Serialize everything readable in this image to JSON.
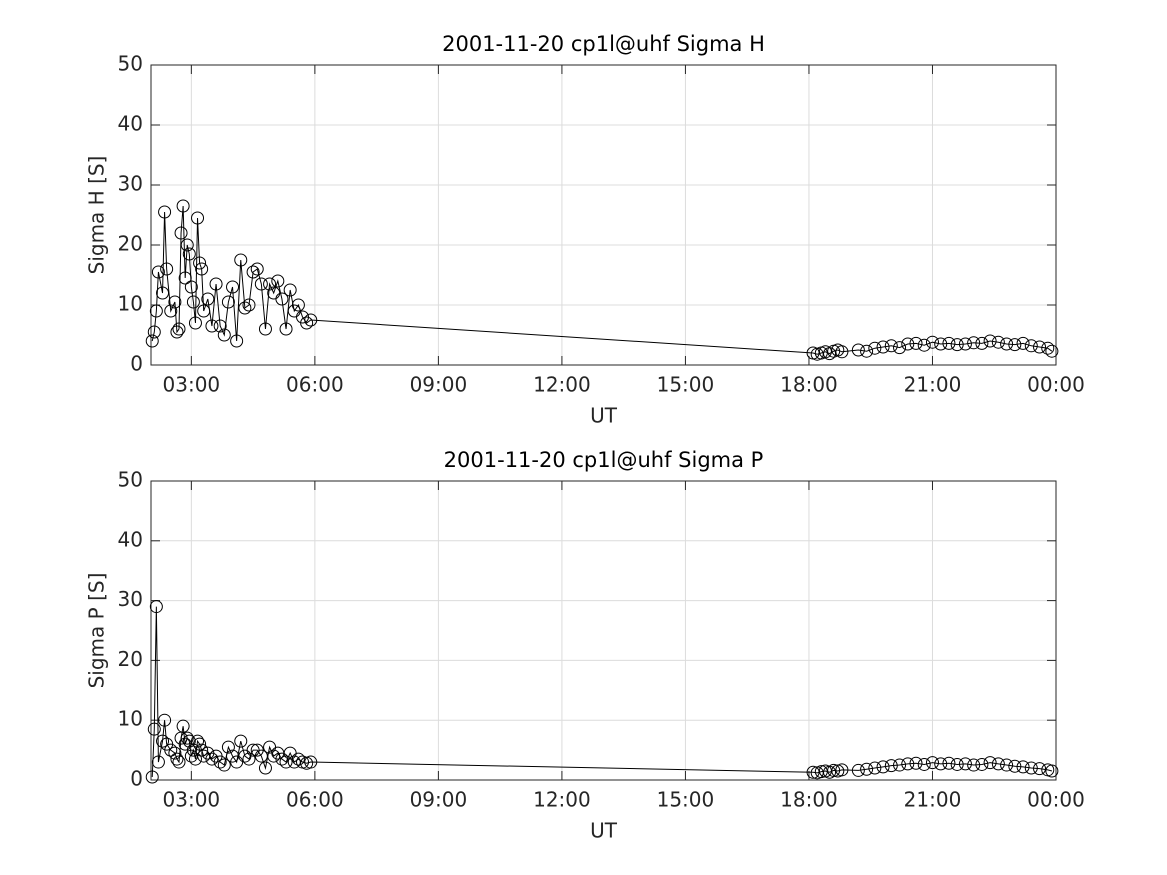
{
  "chart_data": [
    {
      "type": "line",
      "title": "2001-11-20  cp1l@uhf Sigma H",
      "xlabel": "UT",
      "ylabel": "Sigma H [S]",
      "color": "#000000",
      "grid": true,
      "xlim": [
        2.02,
        24
      ],
      "ylim": [
        0,
        50
      ],
      "xticks": [
        {
          "value": 3,
          "label": "03:00"
        },
        {
          "value": 6,
          "label": "06:00"
        },
        {
          "value": 9,
          "label": "09:00"
        },
        {
          "value": 12,
          "label": "12:00"
        },
        {
          "value": 15,
          "label": "15:00"
        },
        {
          "value": 18,
          "label": "18:00"
        },
        {
          "value": 21,
          "label": "21:00"
        },
        {
          "value": 24,
          "label": "00:00"
        }
      ],
      "yticks": [
        0,
        10,
        20,
        30,
        40,
        50
      ],
      "x": [
        2.05,
        2.1,
        2.15,
        2.2,
        2.3,
        2.35,
        2.4,
        2.5,
        2.6,
        2.65,
        2.7,
        2.75,
        2.8,
        2.85,
        2.9,
        2.95,
        3.0,
        3.05,
        3.1,
        3.15,
        3.2,
        3.25,
        3.3,
        3.4,
        3.5,
        3.6,
        3.7,
        3.8,
        3.9,
        4.0,
        4.1,
        4.2,
        4.3,
        4.4,
        4.5,
        4.6,
        4.7,
        4.8,
        4.9,
        5.0,
        5.1,
        5.2,
        5.3,
        5.4,
        5.5,
        5.6,
        5.7,
        5.8,
        5.9,
        18.1,
        18.2,
        18.3,
        18.4,
        18.5,
        18.6,
        18.7,
        18.8,
        19.2,
        19.4,
        19.6,
        19.8,
        20.0,
        20.2,
        20.4,
        20.6,
        20.8,
        21.0,
        21.2,
        21.4,
        21.6,
        21.8,
        22.0,
        22.2,
        22.4,
        22.6,
        22.8,
        23.0,
        23.2,
        23.4,
        23.6,
        23.8,
        23.9
      ],
      "values": [
        4,
        5.5,
        9,
        15.5,
        12,
        25.5,
        16,
        9,
        10.5,
        5.5,
        6,
        22,
        26.5,
        14.5,
        20,
        18.5,
        13,
        10.5,
        7,
        24.5,
        17,
        16,
        9,
        11,
        6.5,
        13.5,
        6.5,
        5,
        10.5,
        13,
        4,
        17.5,
        9.5,
        10,
        15.5,
        16,
        13.5,
        6,
        13.5,
        12,
        14,
        11,
        6,
        12.5,
        9,
        10,
        8,
        7,
        7.5,
        2,
        1.8,
        2,
        2.2,
        1.9,
        2.3,
        2.5,
        2.2,
        2.5,
        2.3,
        2.8,
        3,
        3.2,
        2.9,
        3.5,
        3.6,
        3.3,
        3.8,
        3.5,
        3.6,
        3.4,
        3.5,
        3.7,
        3.6,
        4,
        3.8,
        3.5,
        3.4,
        3.6,
        3.2,
        3,
        2.8,
        2.3
      ]
    },
    {
      "type": "line",
      "title": "2001-11-20  cp1l@uhf Sigma P",
      "xlabel": "UT",
      "ylabel": "Sigma P [S]",
      "color": "#000000",
      "grid": true,
      "xlim": [
        2.02,
        24
      ],
      "ylim": [
        0,
        50
      ],
      "xticks": [
        {
          "value": 3,
          "label": "03:00"
        },
        {
          "value": 6,
          "label": "06:00"
        },
        {
          "value": 9,
          "label": "09:00"
        },
        {
          "value": 12,
          "label": "12:00"
        },
        {
          "value": 15,
          "label": "15:00"
        },
        {
          "value": 18,
          "label": "18:00"
        },
        {
          "value": 21,
          "label": "21:00"
        },
        {
          "value": 24,
          "label": "00:00"
        }
      ],
      "yticks": [
        0,
        10,
        20,
        30,
        40,
        50
      ],
      "x": [
        2.05,
        2.1,
        2.15,
        2.2,
        2.3,
        2.35,
        2.4,
        2.5,
        2.6,
        2.65,
        2.7,
        2.75,
        2.8,
        2.85,
        2.9,
        2.95,
        3.0,
        3.05,
        3.1,
        3.15,
        3.2,
        3.25,
        3.3,
        3.4,
        3.5,
        3.6,
        3.7,
        3.8,
        3.9,
        4.0,
        4.1,
        4.2,
        4.3,
        4.4,
        4.5,
        4.6,
        4.7,
        4.8,
        4.9,
        5.0,
        5.1,
        5.2,
        5.3,
        5.4,
        5.5,
        5.6,
        5.7,
        5.8,
        5.9,
        18.1,
        18.2,
        18.3,
        18.4,
        18.5,
        18.6,
        18.7,
        18.8,
        19.2,
        19.4,
        19.6,
        19.8,
        20.0,
        20.2,
        20.4,
        20.6,
        20.8,
        21.0,
        21.2,
        21.4,
        21.6,
        21.8,
        22.0,
        22.2,
        22.4,
        22.6,
        22.8,
        23.0,
        23.2,
        23.4,
        23.6,
        23.8,
        23.9
      ],
      "values": [
        0.5,
        8.5,
        29,
        3,
        6.5,
        10,
        6,
        5,
        4.5,
        3.5,
        3,
        7,
        9,
        6,
        7,
        6.5,
        4,
        5,
        3.5,
        6.5,
        6,
        5,
        4,
        4.5,
        3.5,
        4,
        3,
        2.5,
        5.5,
        4,
        3,
        6.5,
        4,
        3.5,
        5,
        5,
        4,
        2,
        5.5,
        4,
        4.5,
        3.5,
        3,
        4.5,
        3,
        3.5,
        3,
        2.8,
        3,
        1.3,
        1.2,
        1.4,
        1.5,
        1.3,
        1.6,
        1.5,
        1.7,
        1.6,
        1.8,
        2,
        2.2,
        2.4,
        2.5,
        2.7,
        2.8,
        2.6,
        2.9,
        2.7,
        2.8,
        2.6,
        2.7,
        2.5,
        2.6,
        2.9,
        2.7,
        2.5,
        2.3,
        2.2,
        2,
        1.9,
        1.7,
        1.5
      ]
    }
  ]
}
